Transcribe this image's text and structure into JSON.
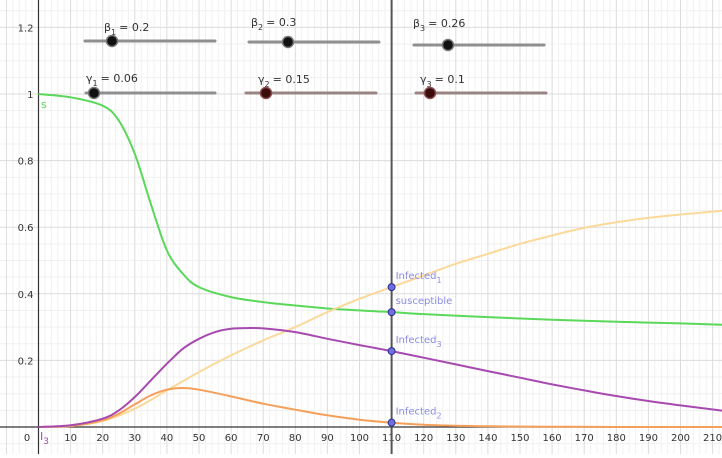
{
  "colors": {
    "s": "#5ad85a",
    "infected1": "#fbd99a",
    "infected2": "#f5a05a",
    "infected3": "#a74ab0",
    "point": "#6f6fe0",
    "point_label": "#8c8ce6",
    "axis": "#333333",
    "grid_major": "#dcdcdc",
    "grid_minor": "#f1f1f1",
    "slider_track": "#8f8f8f"
  },
  "sliders": [
    {
      "id": "beta1",
      "symbol": "β",
      "sub": "1",
      "value_text": "= 0.2",
      "value": 0.2,
      "min": 0,
      "max": 1
    },
    {
      "id": "beta2",
      "symbol": "β",
      "sub": "2",
      "value_text": "= 0.3",
      "value": 0.3,
      "min": 0,
      "max": 1
    },
    {
      "id": "beta3",
      "symbol": "β",
      "sub": "3",
      "value_text": "= 0.26",
      "value": 0.26,
      "min": 0,
      "max": 1
    },
    {
      "id": "gamma1",
      "symbol": "γ",
      "sub": "1",
      "value_text": "= 0.06",
      "value": 0.06,
      "min": 0,
      "max": 1
    },
    {
      "id": "gamma2",
      "symbol": "γ",
      "sub": "2",
      "value_text": "= 0.15",
      "value": 0.15,
      "min": 0,
      "max": 1
    },
    {
      "id": "gamma3",
      "symbol": "γ",
      "sub": "3",
      "value_text": "= 0.1",
      "value": 0.1,
      "min": 0,
      "max": 1
    }
  ],
  "axes": {
    "x_ticks": [
      "10",
      "20",
      "30",
      "40",
      "50",
      "60",
      "70",
      "80",
      "90",
      "100",
      "110",
      "120",
      "130",
      "140",
      "150",
      "160",
      "170",
      "180",
      "190",
      "200",
      "210"
    ],
    "y_ticks": [
      "0.2",
      "0.4",
      "0.6",
      "0.8",
      "1",
      "1.2"
    ],
    "origin_label": "0",
    "xlim": [
      -11,
      214
    ],
    "ylim": [
      -0.1,
      1.26
    ]
  },
  "cursor": {
    "x": 110
  },
  "curve_labels": {
    "s": "s",
    "i3": "I",
    "i3_sub": "3"
  },
  "points": [
    {
      "id": "infected1",
      "label": "Infected",
      "sub": "1",
      "y": 0.42
    },
    {
      "id": "susceptible",
      "label": "susceptible",
      "sub": "",
      "y": 0.345
    },
    {
      "id": "infected3",
      "label": "Infected",
      "sub": "3",
      "y": 0.228
    },
    {
      "id": "infected2",
      "label": "Infected",
      "sub": "2",
      "y": 0.013
    }
  ],
  "chart_data": {
    "type": "line",
    "x_range": [
      0,
      214
    ],
    "series": [
      {
        "name": "s",
        "x": [
          0,
          10,
          20,
          25,
          30,
          35,
          40,
          45,
          50,
          60,
          70,
          80,
          90,
          100,
          110,
          120,
          140,
          160,
          180,
          200,
          214
        ],
        "y": [
          1.0,
          0.99,
          0.965,
          0.92,
          0.82,
          0.67,
          0.53,
          0.46,
          0.42,
          0.39,
          0.375,
          0.365,
          0.356,
          0.35,
          0.345,
          0.339,
          0.33,
          0.322,
          0.316,
          0.311,
          0.307
        ]
      },
      {
        "name": "Infected1",
        "x": [
          0,
          10,
          20,
          30,
          40,
          50,
          60,
          70,
          80,
          90,
          100,
          110,
          120,
          130,
          140,
          150,
          160,
          170,
          180,
          190,
          200,
          214
        ],
        "y": [
          0.0,
          0.003,
          0.018,
          0.055,
          0.11,
          0.165,
          0.215,
          0.26,
          0.3,
          0.345,
          0.385,
          0.42,
          0.455,
          0.49,
          0.52,
          0.55,
          0.575,
          0.598,
          0.615,
          0.628,
          0.638,
          0.65
        ]
      },
      {
        "name": "Infected2",
        "x": [
          0,
          10,
          20,
          25,
          30,
          35,
          40,
          45,
          50,
          60,
          70,
          80,
          90,
          100,
          110,
          120,
          130,
          140,
          160,
          180,
          214
        ],
        "y": [
          0.0,
          0.003,
          0.02,
          0.04,
          0.068,
          0.095,
          0.112,
          0.117,
          0.112,
          0.092,
          0.07,
          0.052,
          0.035,
          0.022,
          0.013,
          0.007,
          0.004,
          0.002,
          0.001,
          0.0,
          0.0
        ]
      },
      {
        "name": "Infected3",
        "x": [
          0,
          10,
          20,
          25,
          30,
          35,
          40,
          45,
          50,
          55,
          60,
          65,
          70,
          80,
          90,
          100,
          110,
          120,
          130,
          140,
          150,
          160,
          170,
          180,
          190,
          200,
          214
        ],
        "y": [
          0.0,
          0.005,
          0.025,
          0.05,
          0.09,
          0.14,
          0.19,
          0.235,
          0.265,
          0.285,
          0.295,
          0.297,
          0.296,
          0.285,
          0.265,
          0.246,
          0.228,
          0.208,
          0.188,
          0.168,
          0.148,
          0.128,
          0.11,
          0.093,
          0.078,
          0.065,
          0.048
        ]
      }
    ]
  }
}
